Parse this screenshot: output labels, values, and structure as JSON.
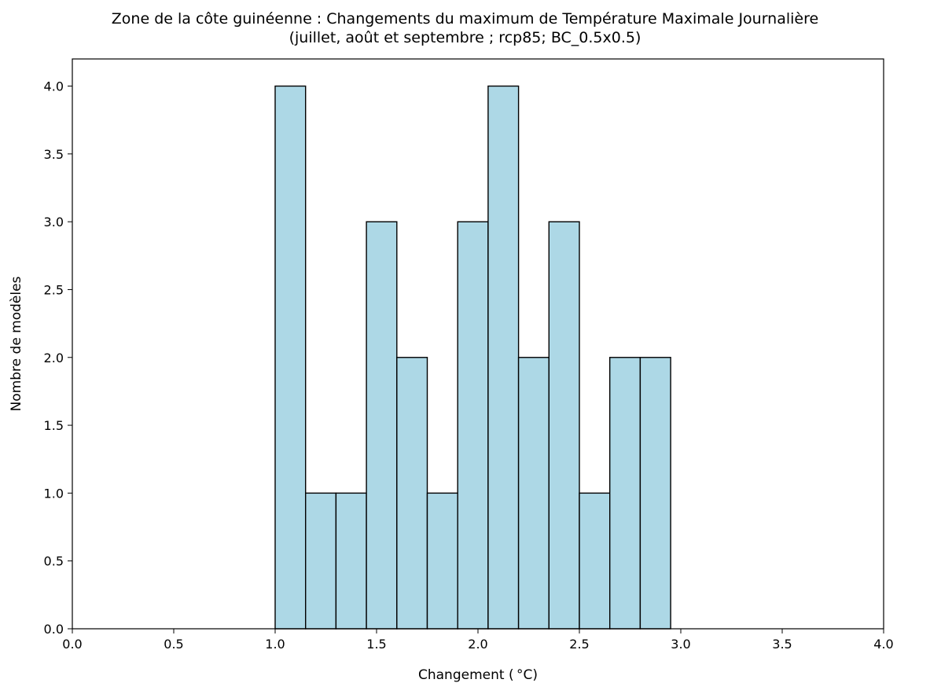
{
  "chart_data": {
    "type": "bar",
    "title": "Zone de la côte guinéenne : Changements du maximum de Température Maximale Journalière",
    "subtitle": "(juillet, août et septembre ; rcp85; BC_0.5x0.5)",
    "xlabel": "Changement ( °C)",
    "ylabel": "Nombre de modèles",
    "xlim": [
      0.0,
      4.0
    ],
    "ylim": [
      0.0,
      4.2
    ],
    "xticks": [
      "0.0",
      "0.5",
      "1.0",
      "1.5",
      "2.0",
      "2.5",
      "3.0",
      "3.5",
      "4.0"
    ],
    "yticks": [
      "0.0",
      "0.5",
      "1.0",
      "1.5",
      "2.0",
      "2.5",
      "3.0",
      "3.5",
      "4.0"
    ],
    "bins": [
      {
        "x0": 1.0,
        "x1": 1.15,
        "count": 4
      },
      {
        "x0": 1.15,
        "x1": 1.3,
        "count": 1
      },
      {
        "x0": 1.3,
        "x1": 1.45,
        "count": 1
      },
      {
        "x0": 1.45,
        "x1": 1.6,
        "count": 3
      },
      {
        "x0": 1.6,
        "x1": 1.75,
        "count": 2
      },
      {
        "x0": 1.75,
        "x1": 1.9,
        "count": 1
      },
      {
        "x0": 1.9,
        "x1": 2.05,
        "count": 3
      },
      {
        "x0": 2.05,
        "x1": 2.2,
        "count": 4
      },
      {
        "x0": 2.2,
        "x1": 2.35,
        "count": 2
      },
      {
        "x0": 2.35,
        "x1": 2.5,
        "count": 3
      },
      {
        "x0": 2.5,
        "x1": 2.65,
        "count": 1
      },
      {
        "x0": 2.65,
        "x1": 2.8,
        "count": 2
      },
      {
        "x0": 2.8,
        "x1": 2.95,
        "count": 2
      }
    ],
    "grid": false,
    "legend": "none",
    "bar_color": "#add8e6",
    "edge_color": "#000000"
  }
}
